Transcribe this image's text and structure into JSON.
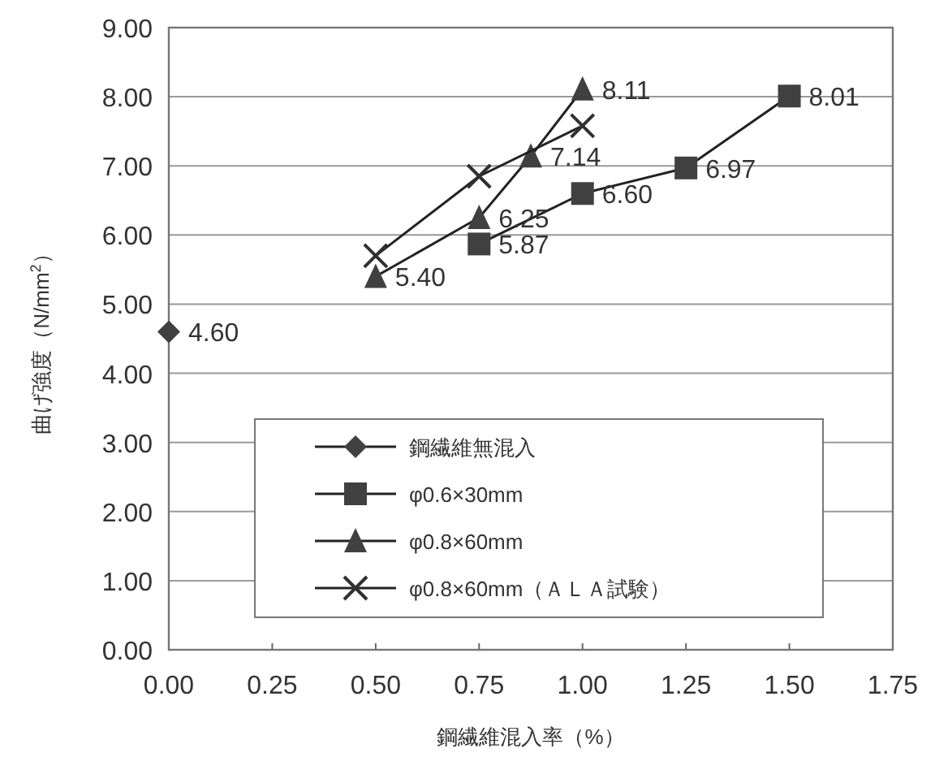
{
  "chart_data": {
    "type": "line",
    "xlabel": "鋼繊維混入率（%）",
    "ylabel": "曲げ強度（N/mm$^{2}$）",
    "xlim": [
      0,
      1.75
    ],
    "ylim": [
      0,
      9
    ],
    "xticks": [
      {
        "value": 0,
        "label": "0.00"
      },
      {
        "value": 0.25,
        "label": "0.25"
      },
      {
        "value": 0.5,
        "label": "0.50"
      },
      {
        "value": 0.75,
        "label": "0.75"
      },
      {
        "value": 1,
        "label": "1.00"
      },
      {
        "value": 1.25,
        "label": "1.25"
      },
      {
        "value": 1.5,
        "label": "1.50"
      },
      {
        "value": 1.75,
        "label": "1.75"
      }
    ],
    "yticks": [
      {
        "value": 0,
        "label": "0.00"
      },
      {
        "value": 1,
        "label": "1.00"
      },
      {
        "value": 2,
        "label": "2.00"
      },
      {
        "value": 3,
        "label": "3.00"
      },
      {
        "value": 4,
        "label": "4.00"
      },
      {
        "value": 5,
        "label": "5.00"
      },
      {
        "value": 6,
        "label": "6.00"
      },
      {
        "value": 7,
        "label": "7.00"
      },
      {
        "value": 8,
        "label": "8.00"
      },
      {
        "value": 9,
        "label": "9.00"
      }
    ],
    "grid": "y",
    "legend": "bottom",
    "series": [
      {
        "name": "鋼繊維無混入",
        "color": "#404040",
        "marker": "diamond",
        "x": [
          0
        ],
        "values": [
          4.6
        ],
        "value_labels": [
          "4.60"
        ]
      },
      {
        "name": "φ0.6×30mm",
        "color": "#404040",
        "marker": "square",
        "x": [
          0.75,
          1,
          1.25,
          1.5
        ],
        "values": [
          5.87,
          6.6,
          6.97,
          8.01
        ],
        "value_labels": [
          "5.87",
          "6.60",
          "6.97",
          "8.01"
        ]
      },
      {
        "name": "φ0.8×60mm",
        "color": "#404040",
        "marker": "triangle",
        "x": [
          0.5,
          0.75,
          0.875,
          1
        ],
        "values": [
          5.4,
          6.25,
          7.14,
          8.11
        ],
        "value_labels": [
          "5.40",
          "6.25",
          "7.14",
          "8.11"
        ]
      },
      {
        "name": "φ0.8×60mm（ＡＬＡ試験）",
        "color": "#303030",
        "marker": "cross",
        "x": [
          0.5,
          0.75,
          1
        ],
        "values": [
          5.7,
          6.85,
          7.58
        ]
      }
    ]
  }
}
